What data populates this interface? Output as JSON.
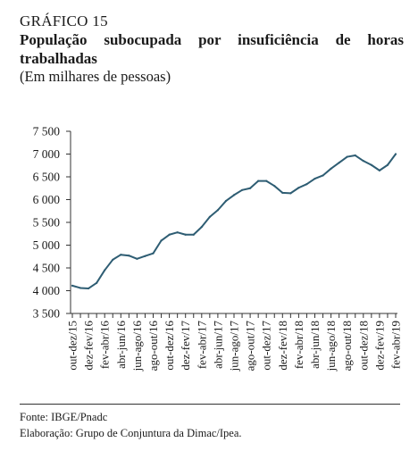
{
  "figure": {
    "label": "GRÁFICO 15",
    "title": "População subocupada por insuficiência de horas trabalhadas",
    "subtitle": "(Em milhares de pessoas)",
    "source": "Fonte: IBGE/Pnadc",
    "elaboration": "Elaboração: Grupo de Conjuntura da Dimac/Ipea."
  },
  "colors": {
    "line": "#2e5d73",
    "axis": "#333333"
  },
  "chart_data": {
    "type": "line",
    "title": "População subocupada por insuficiência de horas trabalhadas",
    "ylabel": "",
    "xlabel": "",
    "ylim": [
      3500,
      7500
    ],
    "yticks": [
      3500,
      4000,
      4500,
      5000,
      5500,
      6000,
      6500,
      7000,
      7500
    ],
    "ytick_labels": [
      "3 500",
      "4 000",
      "4 500",
      "5 000",
      "5 500",
      "6 000",
      "6 500",
      "7 000",
      "7 500"
    ],
    "grid": false,
    "x": [
      "out-dez/15",
      "nov-jan/16",
      "dez-fev/16",
      "jan-mar/16",
      "fev-abr/16",
      "mar-mai/16",
      "abr-jun/16",
      "mai-jul/16",
      "jun-ago/16",
      "jul-set/16",
      "ago-out/16",
      "set-nov/16",
      "out-dez/16",
      "nov-jan/17",
      "dez-fev/17",
      "jan-mar/17",
      "fev-abr/17",
      "mar-mai/17",
      "abr-jun/17",
      "mai-jul/17",
      "jun-ago/17",
      "jul-set/17",
      "ago-out/17",
      "set-nov/17",
      "out-dez/17",
      "nov-jan/18",
      "dez-fev/18",
      "jan-mar/18",
      "fev-abr/18",
      "mar-mai/18",
      "abr-jun/18",
      "mai-jul/18",
      "jun-ago/18",
      "jul-set/18",
      "ago-out/18",
      "set-nov/18",
      "out-dez/18",
      "nov-jan/19",
      "dez-fev/19",
      "jan-mar/19",
      "fev-abr/19"
    ],
    "x_tick_labels": [
      "out-dez/15",
      "dez-fev/16",
      "fev-abr/16",
      "abr-jun/16",
      "jun-ago/16",
      "ago-out/16",
      "out-dez/16",
      "dez-fev/17",
      "fev-abr/17",
      "abr-jun/17",
      "jun-ago/17",
      "ago-out/17",
      "out-dez/17",
      "dez-fev/18",
      "fev-abr/18",
      "abr-jun/18",
      "jun-ago/18",
      "ago-out/18",
      "out-dez/18",
      "dez-fev/19",
      "fev-abr/19"
    ],
    "series": [
      {
        "values": [
          4110,
          4060,
          4050,
          4170,
          4450,
          4680,
          4790,
          4770,
          4700,
          4760,
          4820,
          5100,
          5230,
          5280,
          5230,
          5230,
          5400,
          5620,
          5770,
          5970,
          6100,
          6210,
          6250,
          6410,
          6410,
          6300,
          6150,
          6140,
          6260,
          6340,
          6460,
          6530,
          6680,
          6810,
          6940,
          6970,
          6850,
          6760,
          6640,
          6760,
          7000
        ]
      }
    ]
  }
}
